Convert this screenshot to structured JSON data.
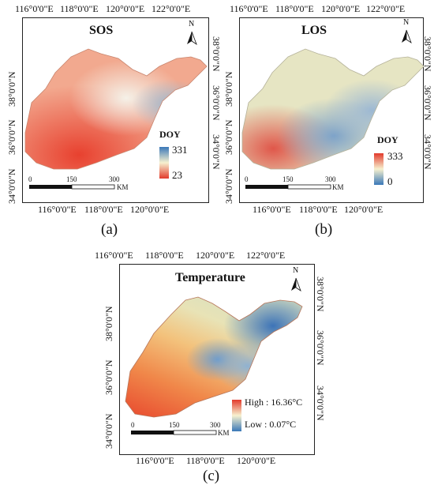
{
  "panels": [
    {
      "id": "a",
      "title": "SOS",
      "caption": "(a)",
      "legend_title": "DOY",
      "legend_max": "331",
      "legend_min": "23",
      "legend_colors": {
        "top": "#3a78b8",
        "mid": "#f7f1cf",
        "bottom": "#e23a2c"
      },
      "top_ticks": [
        "116°0'0\"E",
        "118°0'0\"E",
        "120°0'0\"E",
        "122°0'0\"E"
      ],
      "bottom_ticks": [
        "116°0'0\"E",
        "118°0'0\"E",
        "120°0'0\"E"
      ],
      "left_ticks": [
        "34°0'0\"N",
        "36°0'0\"N",
        "38°0'0\"N"
      ],
      "right_ticks": [
        "34°0'0\"N",
        "36°0'0\"N",
        "38°0'0\"N"
      ],
      "scale": {
        "labels": [
          "0",
          "150",
          "300"
        ],
        "unit": "KM"
      },
      "north": "N",
      "map_colors": {
        "base": "#f2a98f",
        "hot": "#e8412f",
        "cool": "#9fb6cc"
      }
    },
    {
      "id": "b",
      "title": "LOS",
      "caption": "(b)",
      "legend_title": "DOY",
      "legend_max": "333",
      "legend_min": "0",
      "legend_colors": {
        "top": "#e23a2c",
        "mid": "#f7f1cf",
        "bottom": "#3a78b8"
      },
      "top_ticks": [
        "116°0'0\"E",
        "118°0'0\"E",
        "120°0'0\"E",
        "122°0'0\"E"
      ],
      "bottom_ticks": [
        "116°0'0\"E",
        "118°0'0\"E",
        "120°0'0\"E"
      ],
      "left_ticks": [
        "34°0'0\"N",
        "36°0'0\"N",
        "38°0'0\"N"
      ],
      "right_ticks": [
        "34°0'0\"N",
        "36°0'0\"N",
        "38°0'0\"N"
      ],
      "scale": {
        "labels": [
          "0",
          "150",
          "300"
        ],
        "unit": "KM"
      },
      "north": "N",
      "map_colors": {
        "base": "#e6e5c3",
        "hot": "#e0574a",
        "cool": "#7ea3c9"
      }
    },
    {
      "id": "c",
      "title": "Temperature",
      "caption": "(c)",
      "legend_title": "",
      "legend_max": "High : 16.36°C",
      "legend_min": "Low : 0.07°C",
      "legend_colors": {
        "top": "#e23a2c",
        "mid": "#f7f1cf",
        "bottom": "#3a78b8"
      },
      "top_ticks": [
        "116°0'0\"E",
        "118°0'0\"E",
        "120°0'0\"E",
        "122°0'0\"E"
      ],
      "bottom_ticks": [
        "116°0'0\"E",
        "118°0'0\"E",
        "120°0'0\"E"
      ],
      "left_ticks": [
        "34°0'0\"N",
        "36°0'0\"N",
        "38°0'0\"N"
      ],
      "right_ticks": [
        "34°0'0\"N",
        "36°0'0\"N",
        "38°0'0\"N"
      ],
      "scale": {
        "labels": [
          "0",
          "150",
          "300"
        ],
        "unit": "KM"
      },
      "north": "N",
      "map_colors": {
        "base": "#f3c27c",
        "hot": "#e63b28",
        "cool": "#4f86c2"
      }
    }
  ]
}
